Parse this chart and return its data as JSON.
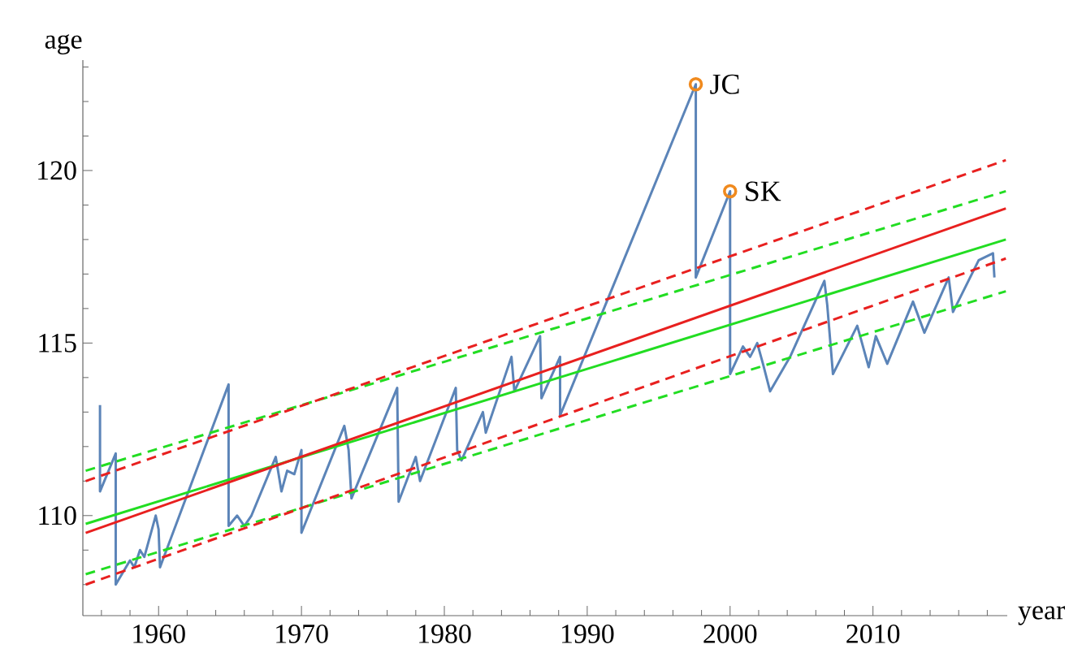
{
  "chart_data": {
    "type": "line",
    "xlabel": "year",
    "ylabel": "age",
    "xlim": [
      1954.7,
      2019.4
    ],
    "ylim": [
      107.1,
      123.2
    ],
    "xticks": [
      {
        "value": 1956,
        "label": null
      },
      {
        "value": 1958,
        "label": null
      },
      1960,
      {
        "value": 1962,
        "label": null
      },
      {
        "value": 1964,
        "label": null
      },
      {
        "value": 1966,
        "label": null
      },
      {
        "value": 1968,
        "label": null
      },
      1970,
      {
        "value": 1972,
        "label": null
      },
      {
        "value": 1974,
        "label": null
      },
      {
        "value": 1976,
        "label": null
      },
      {
        "value": 1978,
        "label": null
      },
      1980,
      {
        "value": 1982,
        "label": null
      },
      {
        "value": 1984,
        "label": null
      },
      {
        "value": 1986,
        "label": null
      },
      {
        "value": 1988,
        "label": null
      },
      1990,
      {
        "value": 1992,
        "label": null
      },
      {
        "value": 1994,
        "label": null
      },
      {
        "value": 1996,
        "label": null
      },
      {
        "value": 1998,
        "label": null
      },
      2000,
      {
        "value": 2002,
        "label": null
      },
      {
        "value": 2004,
        "label": null
      },
      {
        "value": 2006,
        "label": null
      },
      {
        "value": 2008,
        "label": null
      },
      2010,
      {
        "value": 2012,
        "label": null
      },
      {
        "value": 2014,
        "label": null
      },
      {
        "value": 2016,
        "label": null
      },
      {
        "value": 2018,
        "label": null
      }
    ],
    "yticks": [
      {
        "value": 108,
        "label": null
      },
      {
        "value": 109,
        "label": null
      },
      110,
      {
        "value": 111,
        "label": null
      },
      {
        "value": 112,
        "label": null
      },
      {
        "value": 113,
        "label": null
      },
      {
        "value": 114,
        "label": null
      },
      115,
      {
        "value": 116,
        "label": null
      },
      {
        "value": 117,
        "label": null
      },
      {
        "value": 118,
        "label": null
      },
      {
        "value": 119,
        "label": null
      },
      120,
      {
        "value": 121,
        "label": null
      },
      {
        "value": 122,
        "label": null
      },
      {
        "value": 123,
        "label": null
      }
    ],
    "series": [
      {
        "color": "#5b84b8",
        "line_style": "solid",
        "x": [
          1955.9,
          1955.9,
          1956.3,
          1957.0,
          1957.0,
          1958.0,
          1958.3,
          1958.7,
          1959.0,
          1959.8,
          1960.0,
          1960.1,
          1964.9,
          1964.9,
          1965.5,
          1966.0,
          1966.5,
          1968.2,
          1968.6,
          1969.0,
          1969.5,
          1970.0,
          1970.0,
          1973.0,
          1973.3,
          1973.5,
          1976.7,
          1976.8,
          1978.0,
          1978.3,
          1980.8,
          1980.9,
          1981.2,
          1982.7,
          1982.9,
          1984.7,
          1984.9,
          1986.7,
          1986.8,
          1988.1,
          1988.1,
          1997.6,
          1997.6,
          2000.0,
          2000.0,
          2000.9,
          2001.4,
          2001.9,
          2002.3,
          2002.8,
          2004.2,
          2006.6,
          2006.8,
          2007.2,
          2008.9,
          2009.7,
          2010.2,
          2011.0,
          2012.8,
          2013.6,
          2015.3,
          2015.6,
          2017.4,
          2018.4,
          2018.5
        ],
        "values": [
          113.2,
          110.7,
          111.1,
          111.8,
          108.0,
          108.7,
          108.5,
          109.0,
          108.8,
          110.0,
          109.6,
          108.5,
          113.8,
          109.7,
          110.0,
          109.7,
          110.0,
          111.7,
          110.7,
          111.3,
          111.2,
          111.9,
          109.5,
          112.6,
          111.9,
          110.5,
          113.7,
          110.4,
          111.7,
          111.0,
          113.7,
          111.9,
          111.6,
          113.0,
          112.4,
          114.6,
          113.6,
          115.2,
          113.4,
          114.6,
          112.9,
          122.5,
          116.9,
          119.4,
          114.1,
          114.9,
          114.6,
          115.0,
          114.4,
          113.6,
          114.6,
          116.8,
          116.1,
          114.1,
          115.5,
          114.3,
          115.2,
          114.4,
          116.2,
          115.3,
          116.9,
          115.9,
          117.4,
          117.6,
          116.9
        ]
      },
      {
        "color": "#22dd22",
        "line_style": "solid",
        "x": [
          1954.9,
          2019.3
        ],
        "values": [
          109.76,
          118.0
        ]
      },
      {
        "color": "#e8201f",
        "line_style": "solid",
        "x": [
          1954.9,
          2019.3
        ],
        "values": [
          109.5,
          118.9
        ]
      },
      {
        "color": "#22dd22",
        "line_style": "dashed",
        "x": [
          1954.9,
          2019.3
        ],
        "values": [
          111.3,
          119.4
        ]
      },
      {
        "color": "#22dd22",
        "line_style": "dashed",
        "x": [
          1954.9,
          2019.3
        ],
        "values": [
          108.3,
          116.5
        ]
      },
      {
        "color": "#e8201f",
        "line_style": "dashed",
        "x": [
          1954.9,
          2019.3
        ],
        "values": [
          111.0,
          120.3
        ]
      },
      {
        "color": "#e8201f",
        "line_style": "dashed",
        "x": [
          1954.9,
          2019.3
        ],
        "values": [
          108.0,
          117.45
        ]
      },
      {
        "type": "scatter",
        "marker": "circle",
        "color": "#f08a1e",
        "x": [
          1997.6,
          2000.0
        ],
        "values": [
          122.5,
          119.4
        ]
      }
    ],
    "annotations": [
      {
        "text": "JC",
        "x": 1997.6,
        "y": 122.5
      },
      {
        "text": "SK",
        "x": 2000.0,
        "y": 119.4
      }
    ]
  }
}
